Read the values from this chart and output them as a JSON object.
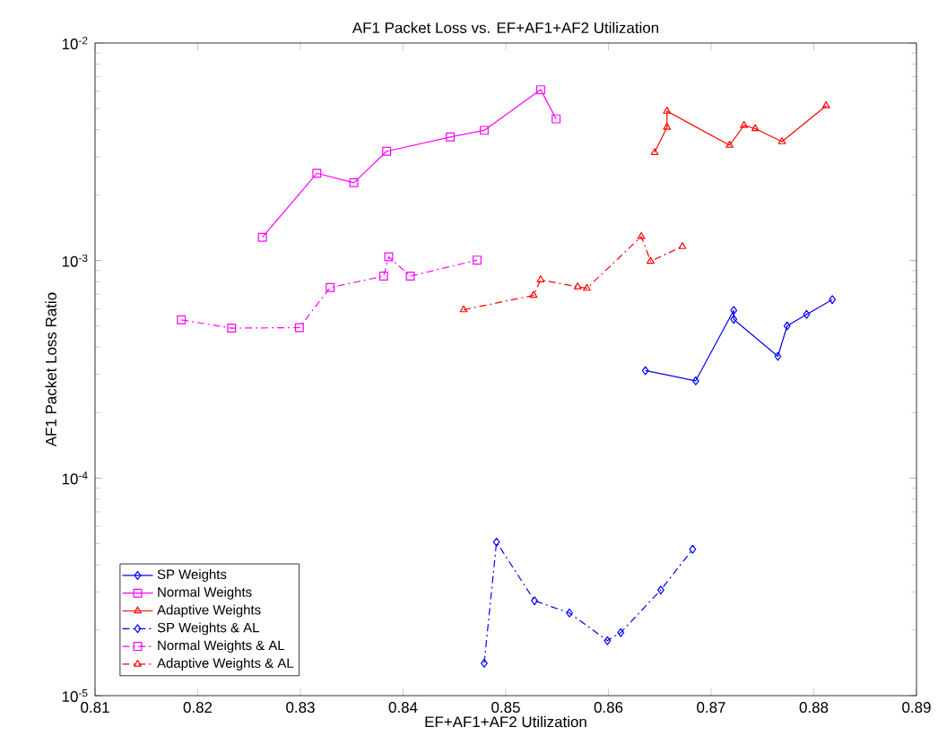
{
  "chart_data": {
    "type": "line",
    "title": "AF1 Packet Loss vs. EF+AF1+AF2 Utilization",
    "xlabel": "EF+AF1+AF2 Utilization",
    "ylabel": "AF1 Packet Loss Ratio",
    "log": "y",
    "legend": "bottom left",
    "grid": false,
    "xlim": [
      0.81,
      0.89
    ],
    "xticks": [
      0.81,
      0.82,
      0.83,
      0.84,
      0.85,
      0.86,
      0.87,
      0.88,
      0.89
    ],
    "ylim": [
      1e-05,
      0.01
    ],
    "yticks": [
      {
        "value": 1e-05,
        "label": "10$^{-5}$"
      },
      {
        "value": 0.0001,
        "label": "10$^{-4}$"
      },
      {
        "value": 0.001,
        "label": "10$^{-3}$"
      },
      {
        "value": 0.01,
        "label": "10$^{-2}$"
      }
    ],
    "series": [
      {
        "name": "SP Weights",
        "color": "#0000ff",
        "marker": "diamond",
        "line_style": "solid",
        "x": [
          0.8636,
          0.8685,
          0.8722,
          0.8722,
          0.8765,
          0.8774,
          0.8793,
          0.8818
        ],
        "values": [
          0.000312,
          0.00028,
          0.00059,
          0.000537,
          0.000363,
          0.000501,
          0.000566,
          0.000662
        ]
      },
      {
        "name": "Normal Weights",
        "color": "#ff00ff",
        "marker": "square",
        "line_style": "solid",
        "x": [
          0.8263,
          0.8316,
          0.8352,
          0.8384,
          0.8446,
          0.8479,
          0.8534,
          0.8549
        ],
        "values": [
          0.00128,
          0.00252,
          0.00228,
          0.00318,
          0.0037,
          0.00397,
          0.0061,
          0.00448
        ]
      },
      {
        "name": "Adaptive Weights",
        "color": "#ff0000",
        "marker": "triangle",
        "line_style": "solid",
        "x": [
          0.8645,
          0.8657,
          0.8657,
          0.8718,
          0.8732,
          0.8743,
          0.8769,
          0.8812
        ],
        "values": [
          0.00314,
          0.0041,
          0.00486,
          0.00339,
          0.00418,
          0.00404,
          0.00352,
          0.00515
        ]
      },
      {
        "name": "SP Weights & AL",
        "color": "#0000ff",
        "marker": "diamond",
        "line_style": "dashdot",
        "x": [
          0.8479,
          0.8491,
          0.8528,
          0.8562,
          0.8599,
          0.8612,
          0.8651,
          0.8682
        ],
        "values": [
          1.41e-05,
          5.08e-05,
          2.73e-05,
          2.4e-05,
          1.79e-05,
          1.95e-05,
          3.06e-05,
          4.71e-05
        ]
      },
      {
        "name": "Normal Weights & AL",
        "color": "#ff00ff",
        "marker": "square",
        "line_style": "dashdot",
        "x": [
          0.8184,
          0.8233,
          0.8299,
          0.8329,
          0.8381,
          0.8386,
          0.8407,
          0.8472
        ],
        "values": [
          0.000534,
          0.000489,
          0.000492,
          0.000752,
          0.000848,
          0.00104,
          0.000848,
          0.001005
        ]
      },
      {
        "name": "Adaptive Weights & AL",
        "color": "#ff0000",
        "marker": "triangle",
        "line_style": "dashdot",
        "x": [
          0.8459,
          0.8527,
          0.8534,
          0.857,
          0.8579,
          0.8632,
          0.8641,
          0.8672
        ],
        "values": [
          0.000594,
          0.000692,
          0.000816,
          0.000757,
          0.000746,
          0.00129,
          0.000993,
          0.00116
        ]
      }
    ]
  }
}
